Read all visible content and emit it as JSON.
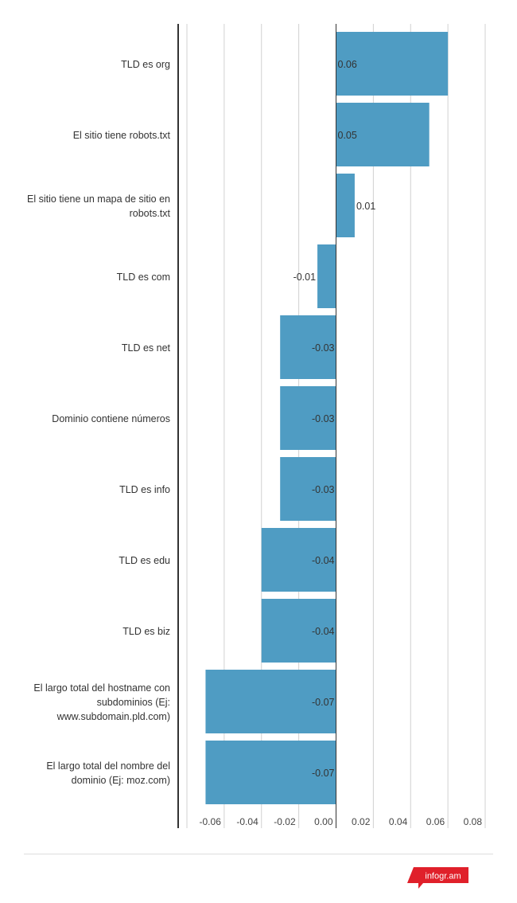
{
  "chart_data": {
    "type": "bar",
    "orientation": "horizontal",
    "categories": [
      [
        "TLD es org"
      ],
      [
        "El sitio tiene robots.txt"
      ],
      [
        "El sitio tiene un mapa de sitio en",
        "robots.txt"
      ],
      [
        "TLD es com"
      ],
      [
        "TLD es net"
      ],
      [
        "Dominio contiene números"
      ],
      [
        "TLD es info"
      ],
      [
        "TLD es edu"
      ],
      [
        "TLD es biz"
      ],
      [
        "El largo total del hostname con",
        "subdominios (Ej:",
        "www.subdomain.pld.com)"
      ],
      [
        "El largo total del nombre del",
        "dominio (Ej: moz.com)"
      ]
    ],
    "values": [
      0.06,
      0.05,
      0.01,
      -0.01,
      -0.03,
      -0.03,
      -0.03,
      -0.04,
      -0.04,
      -0.07,
      -0.07
    ],
    "value_labels": [
      "0.06",
      "0.05",
      "0.01",
      "-0.01",
      "-0.03",
      "-0.03",
      "-0.03",
      "-0.04",
      "-0.04",
      "-0.07",
      "-0.07"
    ],
    "xlim": [
      -0.08,
      0.08
    ],
    "xticks": [
      -0.06,
      -0.04,
      -0.02,
      0.0,
      0.02,
      0.04,
      0.06,
      0.08
    ],
    "xtick_labels": [
      "-0.06",
      "-0.04",
      "-0.02",
      "0.00",
      "0.02",
      "0.04",
      "0.06",
      "0.08"
    ],
    "grid": true,
    "bar_color": "#4f9cc3"
  },
  "footer": {
    "logo_text": "infogr.am",
    "logo_color": "#e0202a"
  }
}
